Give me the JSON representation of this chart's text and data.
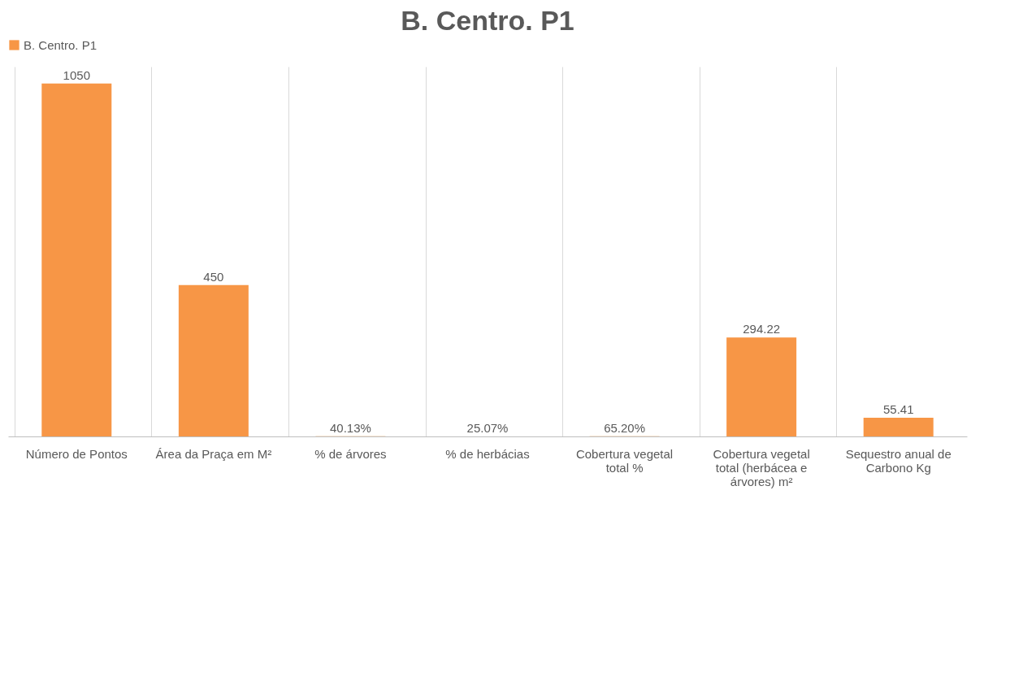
{
  "chart_data": {
    "type": "bar",
    "title": "B. Centro. P1",
    "categories": [
      "Número de Pontos",
      "Área da Praça em M²",
      "% de árvores",
      "% de herbácias",
      "Cobertura vegetal total %",
      "Cobertura vegetal total (herbácea e árvores) m²",
      "Sequestro anual de Carbono Kg"
    ],
    "series": [
      {
        "name": "B. Centro. P1",
        "color": "#f79646",
        "values": [
          1050,
          450,
          0.4013,
          0.2507,
          0.652,
          294.22,
          55.41
        ],
        "value_labels": [
          "1050",
          "450",
          "40.13%",
          "25.07%",
          "65.20%",
          "294.22",
          "55.41"
        ]
      }
    ],
    "grid": "x",
    "legend": "top"
  }
}
